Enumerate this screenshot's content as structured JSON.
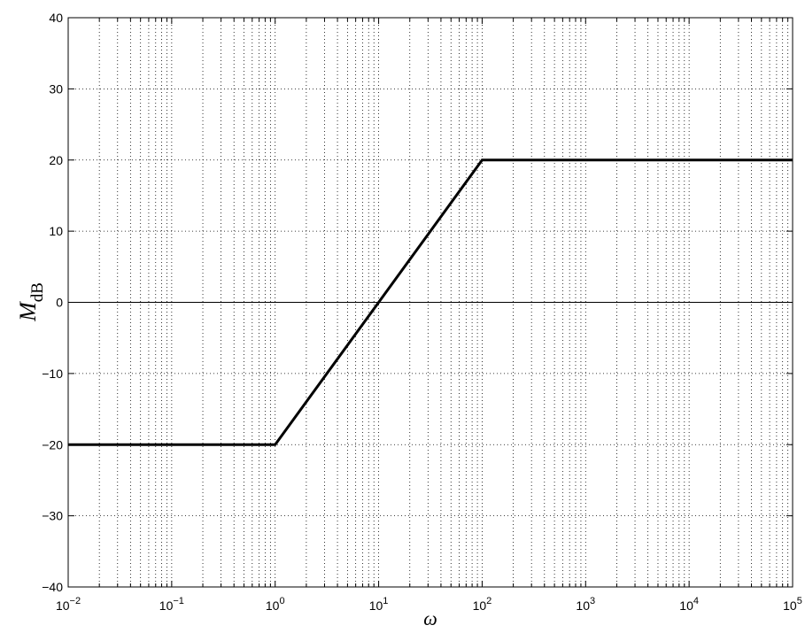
{
  "chart_data": {
    "type": "line",
    "title": "",
    "xlabel": "ω",
    "ylabel": {
      "main": "M",
      "subscript": "dB"
    },
    "xscale": "log",
    "xlim": [
      0.01,
      100000
    ],
    "ylim": [
      -40,
      40
    ],
    "grid": "on (major and minor, dotted)",
    "x_ticks": [
      {
        "value": 0.01,
        "base": "10",
        "exp": "−2"
      },
      {
        "value": 0.1,
        "base": "10",
        "exp": "−1"
      },
      {
        "value": 1,
        "base": "10",
        "exp": "0"
      },
      {
        "value": 10,
        "base": "10",
        "exp": "1"
      },
      {
        "value": 100,
        "base": "10",
        "exp": "2"
      },
      {
        "value": 1000,
        "base": "10",
        "exp": "3"
      },
      {
        "value": 10000,
        "base": "10",
        "exp": "4"
      },
      {
        "value": 100000,
        "base": "10",
        "exp": "5"
      }
    ],
    "y_ticks": [
      {
        "value": -40,
        "label": "−40"
      },
      {
        "value": -30,
        "label": "−30"
      },
      {
        "value": -20,
        "label": "−20"
      },
      {
        "value": -10,
        "label": "−10"
      },
      {
        "value": 0,
        "label": "0"
      },
      {
        "value": 10,
        "label": "10"
      },
      {
        "value": 20,
        "label": "20"
      },
      {
        "value": 30,
        "label": "30"
      },
      {
        "value": 40,
        "label": "40"
      }
    ],
    "series": [
      {
        "x": [
          0.01,
          1,
          100,
          100000
        ],
        "y": [
          -20,
          -20,
          20,
          20
        ],
        "color": "#000000"
      }
    ],
    "reference_lines": [
      {
        "orientation": "horizontal",
        "y": 0,
        "color": "#000000"
      }
    ]
  }
}
